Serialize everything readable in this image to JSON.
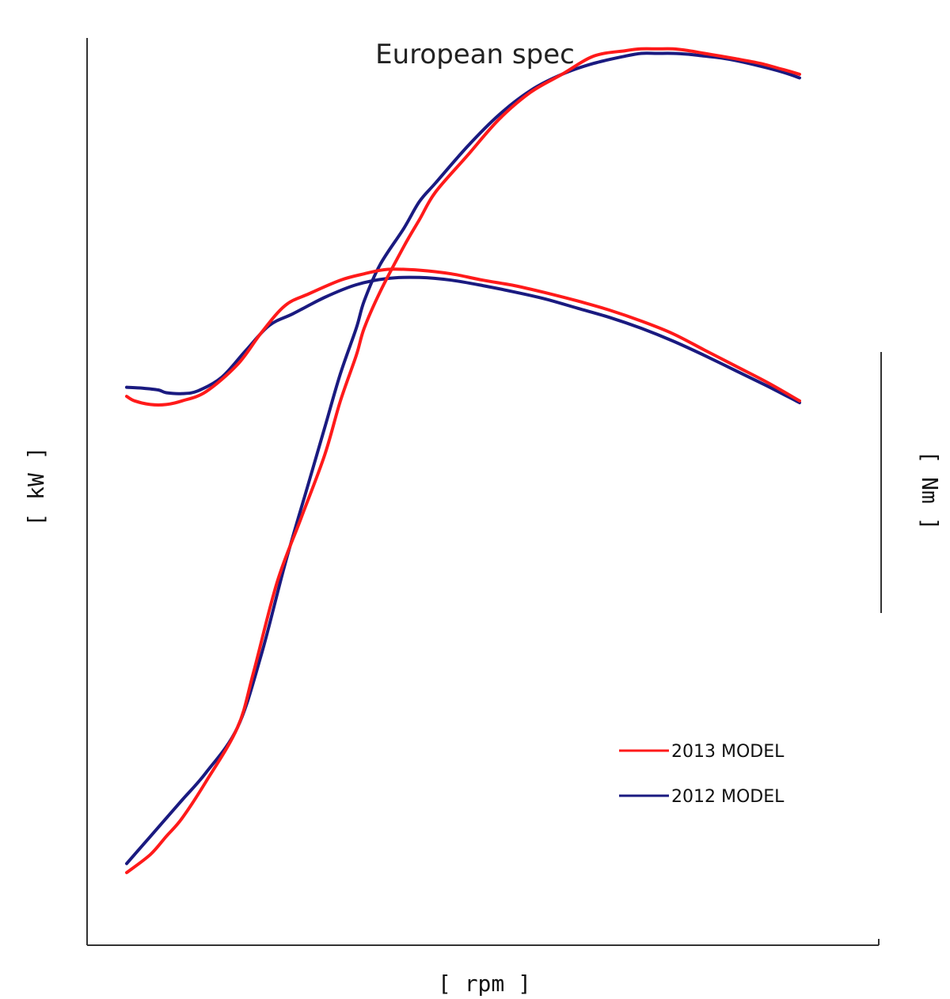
{
  "chart_data": {
    "type": "line",
    "title": "European spec",
    "xlabel": "[ rpm ]",
    "ylabel_left": "[ kW ]",
    "ylabel_right": "[ Nm ]",
    "tick_labels": false,
    "grid": false,
    "legend_position": "bottom-right",
    "xlim": [
      0,
      100
    ],
    "ylim_left": [
      0,
      100
    ],
    "ylim_right": [
      0,
      100
    ],
    "series": [
      {
        "name": "2013 MODEL",
        "color": "#ff1a1a",
        "power": {
          "x": [
            5,
            8,
            10,
            12,
            15,
            19,
            21,
            24,
            27,
            30,
            32,
            34,
            35,
            37,
            40,
            42,
            44,
            48,
            52,
            56,
            60,
            64,
            68,
            70,
            72,
            74,
            76,
            78,
            80,
            82,
            85,
            88,
            90
          ],
          "y": [
            8,
            10,
            12,
            14,
            18,
            24,
            30,
            40,
            47,
            54,
            60,
            65,
            68,
            72,
            77,
            80,
            83,
            87,
            91,
            94,
            96,
            98,
            98.6,
            98.8,
            98.8,
            98.8,
            98.6,
            98.3,
            98.0,
            97.7,
            97.2,
            96.5,
            96.0
          ]
        },
        "torque": {
          "x": [
            5,
            6,
            8,
            10,
            12,
            15,
            19,
            22,
            25,
            28,
            32,
            35,
            38,
            42,
            46,
            50,
            54,
            58,
            62,
            66,
            70,
            74,
            78,
            82,
            86,
            90
          ],
          "y": [
            60.5,
            60.0,
            59.6,
            59.6,
            60.0,
            61.0,
            64.0,
            67.5,
            70.5,
            71.8,
            73.3,
            74.0,
            74.5,
            74.4,
            74.0,
            73.3,
            72.7,
            71.9,
            71.0,
            70.0,
            68.8,
            67.4,
            65.6,
            63.8,
            62.0,
            60.0
          ]
        }
      },
      {
        "name": "2012 MODEL",
        "color": "#1a1a80",
        "power": {
          "x": [
            5,
            8,
            10,
            12,
            15,
            19,
            22,
            25,
            28,
            30,
            32,
            34,
            35,
            37,
            40,
            42,
            44,
            48,
            52,
            56,
            60,
            64,
            68,
            70,
            72,
            74,
            76,
            78,
            80,
            82,
            85,
            88,
            90
          ],
          "y": [
            9,
            12,
            14,
            16,
            19,
            24,
            32,
            42,
            51,
            57,
            63,
            68,
            71,
            75,
            79,
            82,
            84,
            88,
            91.5,
            94.2,
            96,
            97.2,
            98.0,
            98.3,
            98.3,
            98.3,
            98.2,
            98.0,
            97.8,
            97.5,
            96.9,
            96.2,
            95.6
          ]
        },
        "torque": {
          "x": [
            5,
            7,
            9,
            10,
            12,
            14,
            17,
            20,
            23,
            26,
            30,
            34,
            38,
            42,
            46,
            50,
            54,
            58,
            62,
            66,
            70,
            74,
            78,
            82,
            86,
            90
          ],
          "y": [
            61.5,
            61.4,
            61.2,
            60.9,
            60.8,
            61.1,
            62.6,
            65.5,
            68.3,
            69.6,
            71.4,
            72.8,
            73.5,
            73.6,
            73.3,
            72.7,
            72.0,
            71.2,
            70.2,
            69.2,
            68.0,
            66.6,
            65.0,
            63.3,
            61.6,
            59.8
          ]
        }
      }
    ]
  }
}
